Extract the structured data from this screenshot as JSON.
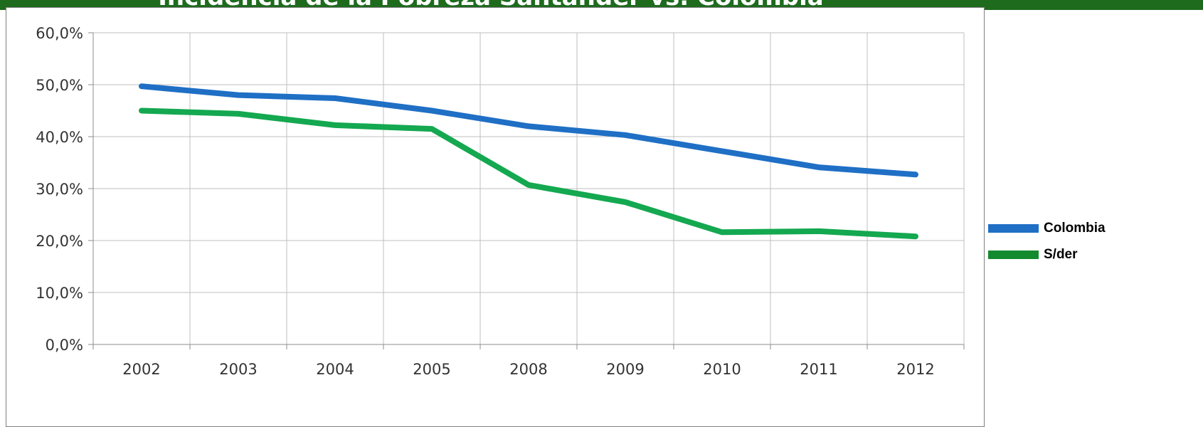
{
  "header": {
    "title": "Incidencia de la Pobreza Santander vs. Colombia"
  },
  "colors": {
    "band": "#1e6b1e",
    "grid": "#bfbfbf",
    "axis": "#8c8c8c"
  },
  "chart_data": {
    "type": "line",
    "categories": [
      "2002",
      "2003",
      "2004",
      "2005",
      "2008",
      "2009",
      "2010",
      "2011",
      "2012"
    ],
    "ylim": [
      0,
      60
    ],
    "y_ticks": [
      "0,0%",
      "10,0%",
      "20,0%",
      "30,0%",
      "40,0%",
      "50,0%",
      "60,0%"
    ],
    "y_tick_values": [
      0,
      10,
      20,
      30,
      40,
      50,
      60
    ],
    "grid": true,
    "legend_position": "right",
    "series": [
      {
        "name": "Colombia",
        "color": "#1f6fc5",
        "values": [
          49.7,
          48.0,
          47.4,
          45.0,
          42.0,
          40.3,
          37.2,
          34.1,
          32.7
        ]
      },
      {
        "name": "S/der",
        "color": "#14a850",
        "values": [
          45.0,
          44.4,
          42.2,
          41.5,
          30.7,
          27.4,
          21.6,
          21.8,
          20.8
        ]
      }
    ]
  },
  "legend": {
    "items": [
      {
        "label": "Colombia",
        "color": "#1f6fc5"
      },
      {
        "label": "S/der",
        "color": "#138a2e"
      }
    ]
  }
}
